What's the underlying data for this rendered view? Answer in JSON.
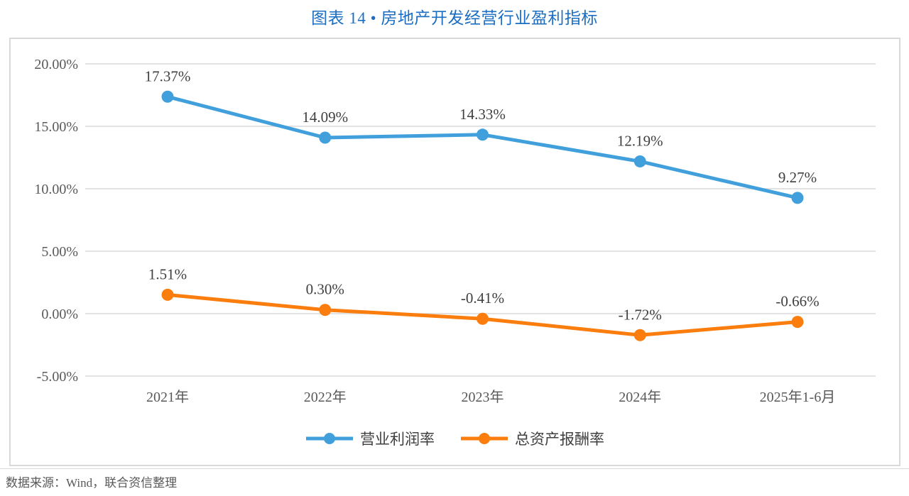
{
  "title": "图表 14 • 房地产开发经营行业盈利指标",
  "source_note": "数据来源：Wind，联合资信整理",
  "colors": {
    "title_accent": "#1B6EC2",
    "series_blue": "#41A0DC",
    "series_orange": "#FA7D0E",
    "gridline": "#D9D9D9",
    "frame_border": "#D9D9D9",
    "axis_text": "#595959",
    "data_label": "#3F3F3F",
    "legend_text": "#404040",
    "source_text": "#595959"
  },
  "chart_data": {
    "type": "line",
    "title": "图表 14 • 房地产开发经营行业盈利指标",
    "categories": [
      "2021年",
      "2022年",
      "2023年",
      "2024年",
      "2025年1-6月"
    ],
    "series": [
      {
        "name": "营业利润率",
        "color": "#41A0DC",
        "values": [
          17.37,
          14.09,
          14.33,
          12.19,
          9.27
        ],
        "labels": [
          "17.37%",
          "14.09%",
          "14.33%",
          "12.19%",
          "9.27%"
        ]
      },
      {
        "name": "总资产报酬率",
        "color": "#FA7D0E",
        "values": [
          1.51,
          0.3,
          -0.41,
          -1.72,
          -0.66
        ],
        "labels": [
          "1.51%",
          "0.30%",
          "-0.41%",
          "-1.72%",
          "-0.66%"
        ]
      }
    ],
    "y_axis": {
      "min": -5,
      "max": 20,
      "step": 5,
      "tick_labels": [
        "20.00%",
        "15.00%",
        "10.00%",
        "5.00%",
        "0.00%",
        "-5.00%"
      ]
    },
    "x_axis": {
      "tick_labels": [
        "2021年",
        "2022年",
        "2023年",
        "2024年",
        "2025年1-6月"
      ]
    },
    "grid": true,
    "legend_position": "bottom",
    "data_labels_visible": true
  }
}
